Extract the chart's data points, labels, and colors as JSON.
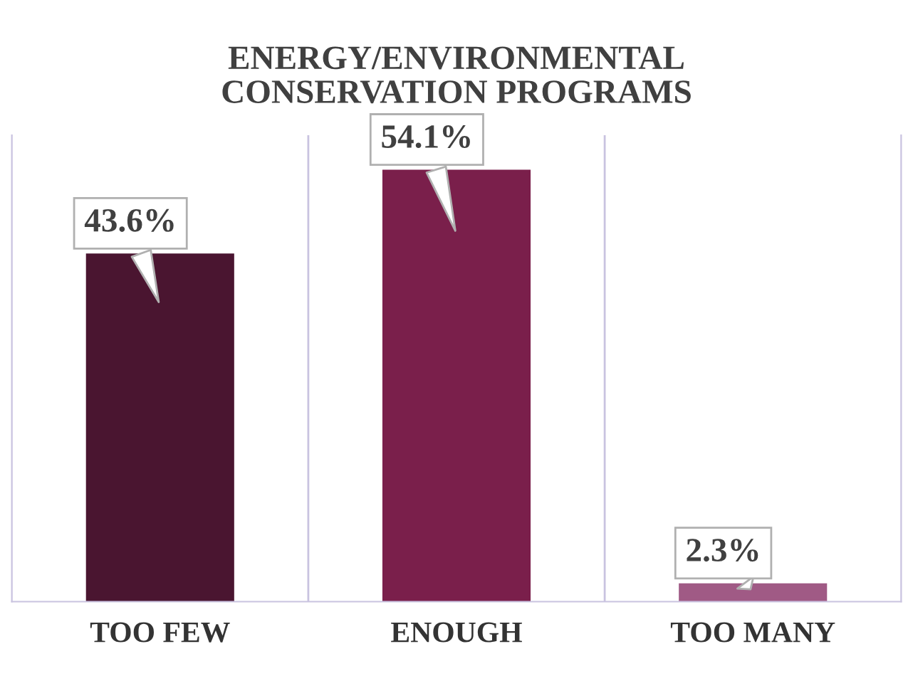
{
  "chart_data": {
    "type": "bar",
    "title": "ENERGY/ENVIRONMENTAL\nCONSERVATION PROGRAMS",
    "categories": [
      "TOO FEW",
      "ENOUGH",
      "TOO MANY"
    ],
    "values": [
      43.6,
      54.1,
      2.3
    ],
    "colors": [
      "#4a1530",
      "#7a1f4b",
      "#a05a85"
    ],
    "value_labels": [
      "43.6%",
      "54.1%",
      "2.3%"
    ],
    "grid": "x"
  }
}
